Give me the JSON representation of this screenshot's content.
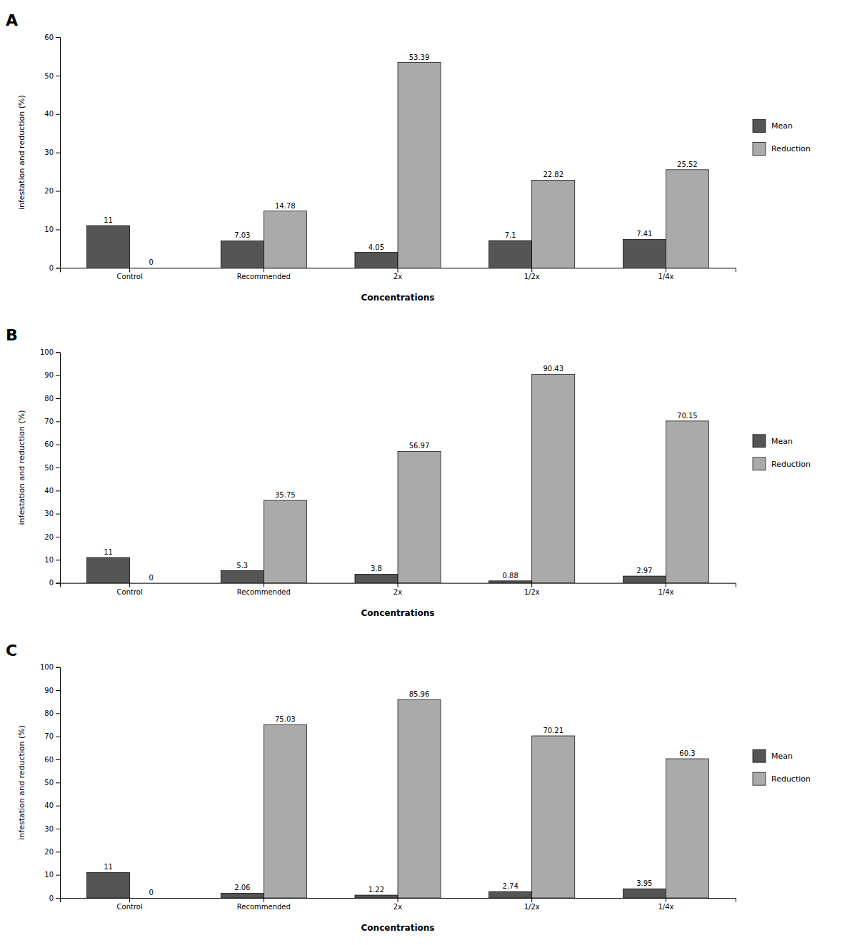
{
  "chart_data": [
    {
      "type": "bar",
      "title": "A",
      "categories": [
        "Control",
        "Recommended",
        "2x",
        "1/2x",
        "1/4x"
      ],
      "series": [
        {
          "name": "Mean",
          "color": "#555555",
          "values": [
            11,
            7.03,
            4.05,
            7.1,
            7.41
          ]
        },
        {
          "name": "Reduction",
          "color": "#aaaaaa",
          "values": [
            0,
            14.78,
            53.39,
            22.82,
            25.52
          ]
        }
      ],
      "xlabel": "Concentrations",
      "ylabel": "infestation and reduction (%)",
      "ylim": [
        0,
        60
      ],
      "yticks": [
        0,
        10,
        20,
        30,
        40,
        50,
        60
      ],
      "data_labels": true,
      "grid": false,
      "legend": "right"
    },
    {
      "type": "bar",
      "title": "B",
      "categories": [
        "Control",
        "Recommended",
        "2x",
        "1/2x",
        "1/4x"
      ],
      "series": [
        {
          "name": "Mean",
          "color": "#555555",
          "values": [
            11,
            5.3,
            3.8,
            0.88,
            2.97
          ]
        },
        {
          "name": "Reduction",
          "color": "#aaaaaa",
          "values": [
            0,
            35.75,
            56.97,
            90.43,
            70.15
          ]
        }
      ],
      "xlabel": "Concentrations",
      "ylabel": "infestation and reduction (%)",
      "ylim": [
        0,
        100
      ],
      "yticks": [
        0,
        10,
        20,
        30,
        40,
        50,
        60,
        70,
        80,
        90,
        100
      ],
      "data_labels": true,
      "grid": false,
      "legend": "right"
    },
    {
      "type": "bar",
      "title": "C",
      "categories": [
        "Control",
        "Recommended",
        "2x",
        "1/2x",
        "1/4x"
      ],
      "series": [
        {
          "name": "Mean",
          "color": "#555555",
          "values": [
            11,
            2.06,
            1.22,
            2.74,
            3.95
          ]
        },
        {
          "name": "Reduction",
          "color": "#aaaaaa",
          "values": [
            0,
            75.03,
            85.96,
            70.21,
            60.3
          ]
        }
      ],
      "xlabel": "Concentrations",
      "ylabel": "infestation and reduction (%)",
      "ylim": [
        0,
        100
      ],
      "yticks": [
        0,
        10,
        20,
        30,
        40,
        50,
        60,
        70,
        80,
        90,
        100
      ],
      "data_labels": true,
      "grid": false,
      "legend": "right"
    }
  ]
}
